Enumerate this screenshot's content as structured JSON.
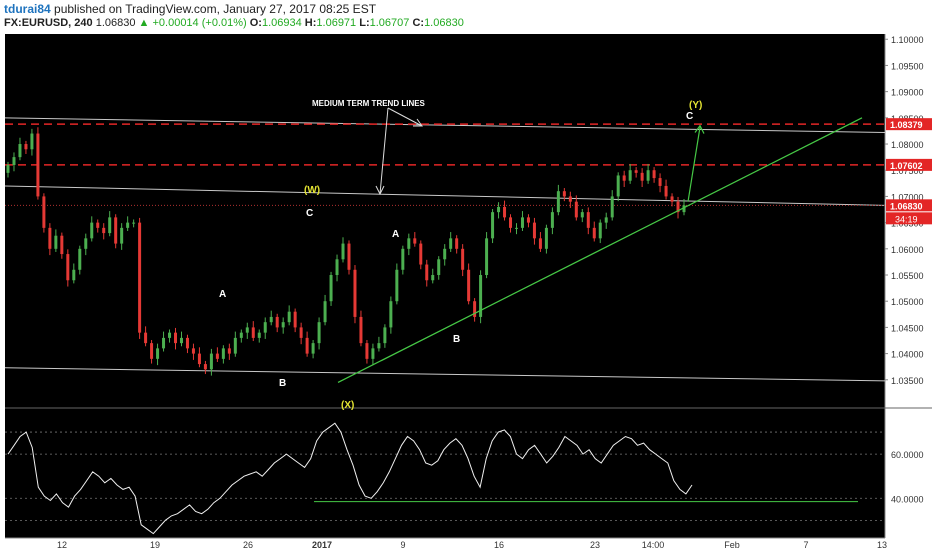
{
  "header": {
    "author": "tdurai84",
    "published": "published on TradingView.com, January 27, 2017 08:25 EST",
    "symbol": "FX:EURUSD, 240",
    "last": "1.06830",
    "change": "+0.00014 (+0.01%)",
    "o_label": "O:",
    "o_value": "1.06934",
    "h_label": "H:",
    "h_value": "1.06971",
    "l_label": "L:",
    "l_value": "1.06707",
    "c_label": "C:",
    "c_value": "1.06830"
  },
  "colors": {
    "background": "#000000",
    "up_candle": "#4caf50",
    "down_candle": "#e53935",
    "trend_line": "#c8c8c8",
    "support_line": "#46c846",
    "resistance_dash": "#e32626",
    "wave_label_major": "#e6e632",
    "wave_label_minor": "#ffffff",
    "price_badge": "#e32626"
  },
  "chart_data": {
    "type": "candlestick",
    "symbol": "FX:EURUSD",
    "timeframe": "240",
    "ylim": [
      1.03,
      1.101
    ],
    "y_ticks": [
      "1.10000",
      "1.09500",
      "1.09000",
      "1.08500",
      "1.08000",
      "1.07500",
      "1.07000",
      "1.06500",
      "1.06000",
      "1.05500",
      "1.05000",
      "1.04500",
      "1.04000",
      "1.03500"
    ],
    "x_ticks": [
      "12",
      "19",
      "26",
      "2017",
      "9",
      "16",
      "23",
      "14:00",
      "Feb",
      "7",
      "13"
    ],
    "price_levels": [
      {
        "label": "1.08379",
        "value": 1.08379,
        "style": "dashed-red"
      },
      {
        "label": "1.07602",
        "value": 1.07602,
        "style": "dashed-red"
      },
      {
        "label": "1.06830",
        "value": 1.0683,
        "style": "current-price"
      }
    ],
    "countdown": "34:19",
    "annotations": [
      {
        "text": "MEDIUM TERM TREND LINES",
        "kind": "note"
      },
      {
        "text": "(W)",
        "kind": "wave-major"
      },
      {
        "text": "(X)",
        "kind": "wave-major"
      },
      {
        "text": "(Y)",
        "kind": "wave-major"
      },
      {
        "text": "A",
        "kind": "wave-minor"
      },
      {
        "text": "B",
        "kind": "wave-minor"
      },
      {
        "text": "C",
        "kind": "wave-minor"
      },
      {
        "text": "A",
        "kind": "wave-minor"
      },
      {
        "text": "B",
        "kind": "wave-minor"
      },
      {
        "text": "C",
        "kind": "wave-minor"
      }
    ],
    "closes": [
      1.076,
      1.0775,
      1.08,
      1.079,
      1.082,
      1.07,
      1.064,
      1.06,
      1.0625,
      1.059,
      1.054,
      1.056,
      1.06,
      1.062,
      1.065,
      1.064,
      1.063,
      1.066,
      1.061,
      1.064,
      1.065,
      1.065,
      1.044,
      1.042,
      1.039,
      1.041,
      1.043,
      1.044,
      1.042,
      1.043,
      1.041,
      1.04,
      1.038,
      1.037,
      1.04,
      1.039,
      1.041,
      1.04,
      1.043,
      1.044,
      1.045,
      1.043,
      1.044,
      1.046,
      1.047,
      1.045,
      1.046,
      1.048,
      1.045,
      1.043,
      1.04,
      1.042,
      1.046,
      1.05,
      1.055,
      1.058,
      1.061,
      1.056,
      1.047,
      1.042,
      1.039,
      1.041,
      1.042,
      1.045,
      1.05,
      1.056,
      1.06,
      1.062,
      1.061,
      1.057,
      1.054,
      1.055,
      1.058,
      1.06,
      1.062,
      1.06,
      1.056,
      1.05,
      1.047,
      1.055,
      1.062,
      1.067,
      1.068,
      1.066,
      1.064,
      1.064,
      1.066,
      1.065,
      1.062,
      1.06,
      1.064,
      1.067,
      1.071,
      1.07,
      1.069,
      1.066,
      1.067,
      1.064,
      1.062,
      1.065,
      1.066,
      1.07,
      1.074,
      1.073,
      1.075,
      1.0745,
      1.073,
      1.075,
      1.0735,
      1.072,
      1.07,
      1.069,
      1.067,
      1.0683
    ],
    "rsi": {
      "ylim": [
        22,
        80
      ],
      "levels": [
        30,
        40,
        60,
        70
      ],
      "y_tick_labels": [
        {
          "label": "60.0000",
          "value": 60
        },
        {
          "label": "40.0000",
          "value": 40
        }
      ],
      "values": [
        60,
        64,
        68,
        70,
        63,
        45,
        41,
        39,
        42,
        38,
        36,
        41,
        44,
        48,
        52,
        50,
        47,
        49,
        46,
        44,
        45,
        41,
        28,
        26,
        24,
        27,
        30,
        32,
        33,
        35,
        37,
        34,
        33,
        35,
        38,
        40,
        43,
        46,
        48,
        50,
        51,
        52,
        50,
        53,
        56,
        58,
        60,
        58,
        56,
        54,
        58,
        66,
        70,
        72,
        74,
        70,
        62,
        55,
        46,
        41,
        40,
        43,
        47,
        52,
        58,
        64,
        68,
        66,
        62,
        56,
        55,
        57,
        62,
        65,
        67,
        64,
        58,
        50,
        45,
        58,
        66,
        70,
        71,
        68,
        60,
        58,
        62,
        64,
        60,
        56,
        59,
        63,
        68,
        66,
        64,
        60,
        62,
        58,
        56,
        60,
        64,
        66,
        68,
        67,
        64,
        65,
        62,
        60,
        58,
        56,
        48,
        44,
        42,
        46
      ]
    }
  }
}
